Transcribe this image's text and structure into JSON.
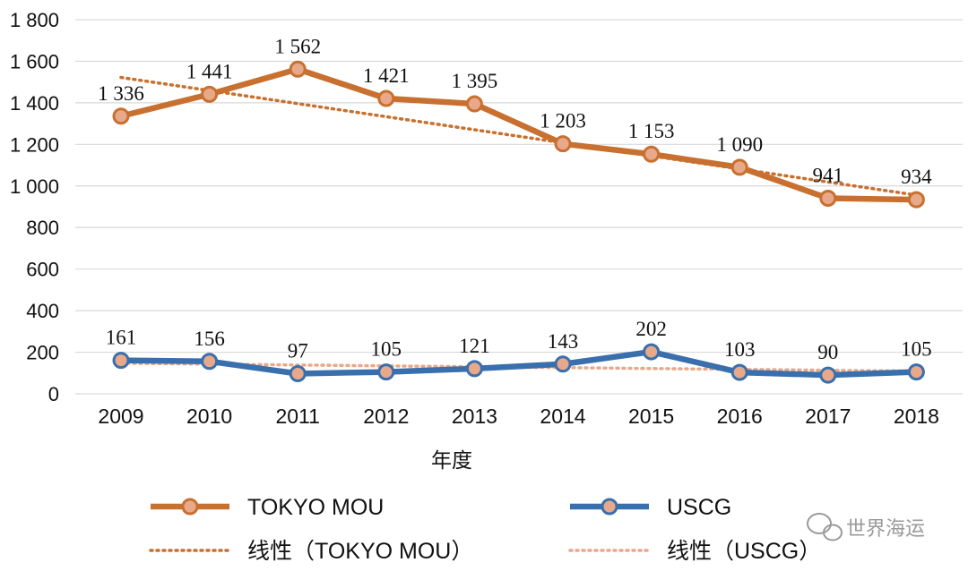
{
  "chart_data": {
    "type": "line",
    "categories": [
      "2009",
      "2010",
      "2011",
      "2012",
      "2013",
      "2014",
      "2015",
      "2016",
      "2017",
      "2018"
    ],
    "series": [
      {
        "name": "TOKYO MOU",
        "color": "#c8702f",
        "values": [
          1336,
          1441,
          1562,
          1421,
          1395,
          1203,
          1153,
          1090,
          941,
          934
        ],
        "labels": [
          "1 336",
          "1 441",
          "1 562",
          "1 421",
          "1 395",
          "1 203",
          "1 153",
          "1 090",
          "941",
          "934"
        ]
      },
      {
        "name": "USCG",
        "color": "#3a6fad",
        "values": [
          161,
          156,
          97,
          105,
          121,
          143,
          202,
          103,
          90,
          105
        ],
        "labels": [
          "161",
          "156",
          "97",
          "105",
          "121",
          "143",
          "202",
          "103",
          "90",
          "105"
        ]
      }
    ],
    "trendlines": [
      {
        "name": "线性（TOKYO MOU）",
        "color": "#c8702f",
        "start": 1522,
        "end": 956
      },
      {
        "name": "线性（USCG）",
        "color": "#e8a98a",
        "start": 147,
        "end": 109
      }
    ],
    "xlabel": "年度",
    "ylabel": "",
    "ylim": [
      0,
      1800
    ],
    "yticks": [
      0,
      200,
      400,
      600,
      800,
      1000,
      1200,
      1400,
      1600,
      1800
    ],
    "ytick_labels": [
      "0",
      "200",
      "400",
      "600",
      "800",
      "1 000",
      "1 200",
      "1 400",
      "1 600",
      "1 800"
    ],
    "grid": true,
    "legend": "bottom",
    "marker_fill": "#e8a98a"
  },
  "watermark": "世界海运"
}
